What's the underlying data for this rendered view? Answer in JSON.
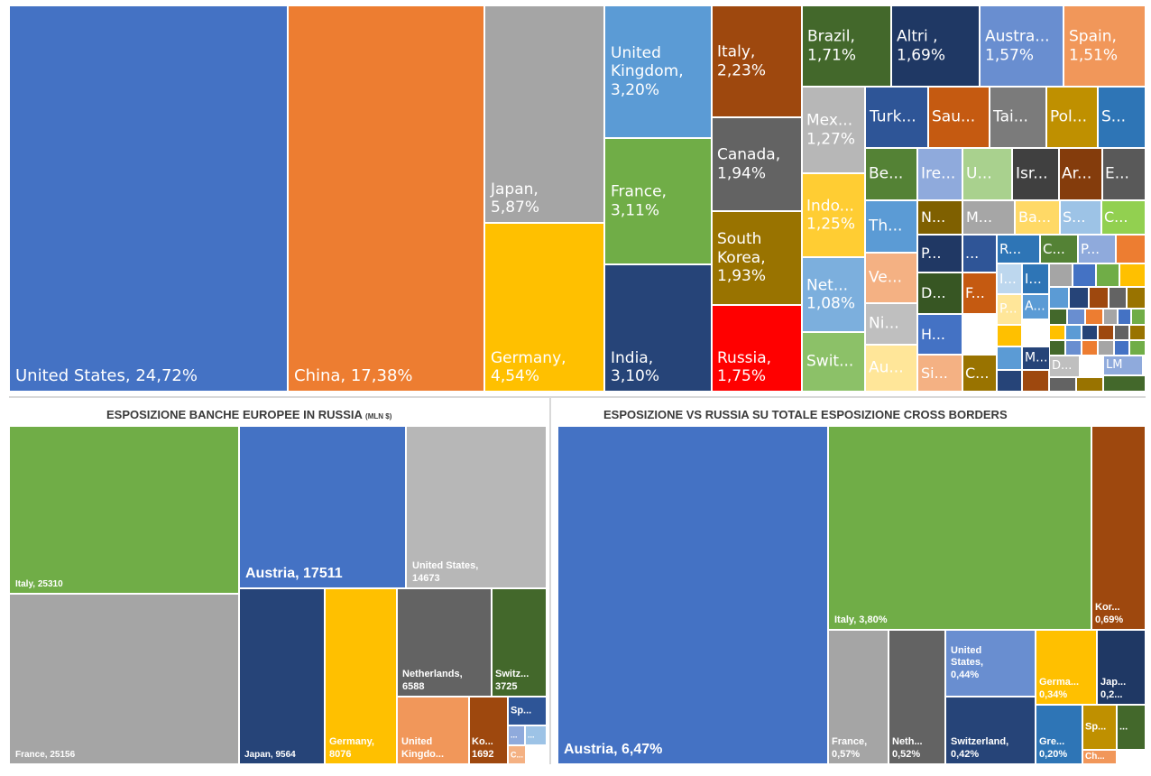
{
  "chart_data": [
    {
      "type": "treemap",
      "title": "",
      "items": [
        {
          "label": "United States, 24,72%",
          "name": "United States",
          "value": 24.72,
          "color": "#4472c4"
        },
        {
          "label": "China, 17,38%",
          "name": "China",
          "value": 17.38,
          "color": "#ed7d31"
        },
        {
          "label": "Japan,\n5,87%",
          "name": "Japan",
          "value": 5.87,
          "color": "#a5a5a5"
        },
        {
          "label": "Germany,\n4,54%",
          "name": "Germany",
          "value": 4.54,
          "color": "#ffc000"
        },
        {
          "label": "United\nKingdom,\n3,20%",
          "name": "United Kingdom",
          "value": 3.2,
          "color": "#5b9bd5"
        },
        {
          "label": "France,\n3,11%",
          "name": "France",
          "value": 3.11,
          "color": "#70ad47"
        },
        {
          "label": "India,\n3,10%",
          "name": "India",
          "value": 3.1,
          "color": "#264478"
        },
        {
          "label": "Italy,\n2,23%",
          "name": "Italy",
          "value": 2.23,
          "color": "#9e480e"
        },
        {
          "label": "Canada,\n1,94%",
          "name": "Canada",
          "value": 1.94,
          "color": "#636363"
        },
        {
          "label": "South\nKorea,\n1,93%",
          "name": "South Korea",
          "value": 1.93,
          "color": "#997300"
        },
        {
          "label": "Russia,\n1,75%",
          "name": "Russia",
          "value": 1.75,
          "color": "#ff0000"
        },
        {
          "label": "Brazil,\n1,71%",
          "name": "Brazil",
          "value": 1.71,
          "color": "#43682b"
        },
        {
          "label": "Altri ,\n1,69%",
          "name": "Altri",
          "value": 1.69,
          "color": "#1f3864"
        },
        {
          "label": "Austra...\n1,57%",
          "name": "Australia",
          "value": 1.57,
          "color": "#698ed0"
        },
        {
          "label": "Spain,\n1,51%",
          "name": "Spain",
          "value": 1.51,
          "color": "#f1975a"
        },
        {
          "label": "Mex...\n1,27%",
          "name": "Mexico",
          "value": 1.27,
          "color": "#b7b7b7"
        },
        {
          "label": "Indo...\n1,25%",
          "name": "Indonesia",
          "value": 1.25,
          "color": "#ffcd33"
        },
        {
          "label": "Net...\n1,08%",
          "name": "Netherlands",
          "value": 1.08,
          "color": "#7cafdd"
        },
        {
          "label": "Swit...",
          "name": "Switzerland",
          "color": "#8cc168"
        },
        {
          "label": "Turk...",
          "color": "#2e5597"
        },
        {
          "label": "Sau...",
          "color": "#c55a11"
        },
        {
          "label": "Tai...",
          "color": "#7b7b7b"
        },
        {
          "label": "Pol...",
          "color": "#bf9000"
        },
        {
          "label": "S...",
          "color": "#2e75b6"
        },
        {
          "label": "Be...",
          "color": "#548235"
        },
        {
          "label": "Ire...",
          "color": "#8faadc"
        },
        {
          "label": "U...",
          "color": "#a9d18e"
        },
        {
          "label": "Isr...",
          "color": "#404040"
        },
        {
          "label": "Ar...",
          "color": "#843c0c"
        },
        {
          "label": "E...",
          "color": "#595959"
        },
        {
          "label": "N...",
          "color": "#7f6000"
        },
        {
          "label": "M...",
          "color": "#a6a6a6"
        },
        {
          "label": "Ba...",
          "color": "#ffd966"
        },
        {
          "label": "S...",
          "color": "#9dc3e6"
        },
        {
          "label": "C...",
          "color": "#92d050"
        },
        {
          "label": "Th...",
          "color": "#5b9bd5"
        },
        {
          "label": "Ve...",
          "color": "#f4b183"
        },
        {
          "label": "Ni...",
          "color": "#bfbfbf"
        },
        {
          "label": "Au...",
          "color": "#ffe699"
        },
        {
          "label": "P...",
          "color": "#203864"
        },
        {
          "label": "...",
          "color": "#2f5597"
        },
        {
          "label": "R...",
          "color": "#2e75b6"
        },
        {
          "label": "C...",
          "color": "#548235"
        },
        {
          "label": "P...",
          "color": "#8faadc"
        },
        {
          "label": "D...",
          "color": "#375623"
        },
        {
          "label": "F...",
          "color": "#c55a11"
        },
        {
          "label": "H...",
          "color": "#4472c4"
        },
        {
          "label": "Si...",
          "color": "#f4b183"
        },
        {
          "label": "C...",
          "color": "#997300"
        },
        {
          "label": "I...",
          "color": "#bdd7ee"
        },
        {
          "label": "I...",
          "color": "#2e75b6"
        },
        {
          "label": "A...",
          "color": "#5b9bd5"
        },
        {
          "label": "P...",
          "color": "#ffe699"
        },
        {
          "label": "M...",
          "color": "#264478"
        },
        {
          "label": "D...",
          "color": "#bfbfbf"
        },
        {
          "label": "LM",
          "color": "#8faadc"
        }
      ]
    },
    {
      "type": "treemap",
      "title": "ESPOSIZIONE BANCHE EUROPEE IN RUSSIA",
      "unit": "(MLN $)",
      "items": [
        {
          "label": "Italy, 25310",
          "name": "Italy",
          "value": 25310,
          "color": "#70ad47"
        },
        {
          "label": "France, 25156",
          "name": "France",
          "value": 25156,
          "color": "#a5a5a5"
        },
        {
          "label": "Austria, 17511",
          "name": "Austria",
          "value": 17511,
          "color": "#4472c4"
        },
        {
          "label": "United States,\n14673",
          "name": "United States",
          "value": 14673,
          "color": "#b7b7b7"
        },
        {
          "label": "Japan, 9564",
          "name": "Japan",
          "value": 9564,
          "color": "#264478"
        },
        {
          "label": "Germany,\n8076",
          "name": "Germany",
          "value": 8076,
          "color": "#ffc000"
        },
        {
          "label": "Netherlands,\n6588",
          "name": "Netherlands",
          "value": 6588,
          "color": "#636363"
        },
        {
          "label": "Switz...\n3725",
          "name": "Switzerland",
          "value": 3725,
          "color": "#43682b"
        },
        {
          "label": "United\nKingdo...",
          "name": "United Kingdom",
          "color": "#f1975a"
        },
        {
          "label": "Ko...\n1692",
          "name": "Korea",
          "value": 1692,
          "color": "#9e480e"
        },
        {
          "label": "Sp...",
          "color": "#2e5597"
        },
        {
          "label": "...",
          "color": "#8faadc"
        },
        {
          "label": "...",
          "color": "#9dc3e6"
        },
        {
          "label": "C...",
          "color": "#f4b183"
        }
      ]
    },
    {
      "type": "treemap",
      "title": "ESPOSIZIONE VS RUSSIA SU TOTALE ESPOSIZIONE CROSS BORDERS",
      "items": [
        {
          "label": "Austria, 6,47%",
          "name": "Austria",
          "value": 6.47,
          "color": "#4472c4"
        },
        {
          "label": "Italy, 3,80%",
          "name": "Italy",
          "value": 3.8,
          "color": "#70ad47"
        },
        {
          "label": "Kor...\n0,69%",
          "name": "Korea",
          "value": 0.69,
          "color": "#9e480e"
        },
        {
          "label": "France,\n0,57%",
          "name": "France",
          "value": 0.57,
          "color": "#a5a5a5"
        },
        {
          "label": "Neth...\n0,52%",
          "name": "Netherlands",
          "value": 0.52,
          "color": "#636363"
        },
        {
          "label": "United\nStates,\n0,44%",
          "name": "United States",
          "value": 0.44,
          "color": "#698ed0"
        },
        {
          "label": "Switzerland,\n0,42%",
          "name": "Switzerland",
          "value": 0.42,
          "color": "#264478"
        },
        {
          "label": "Germa...\n0,34%",
          "name": "Germany",
          "value": 0.34,
          "color": "#ffc000"
        },
        {
          "label": "Jap...\n0,2...",
          "name": "Japan",
          "color": "#1f3864"
        },
        {
          "label": "Gre...\n0,20%",
          "name": "Greece",
          "value": 0.2,
          "color": "#2e75b6"
        },
        {
          "label": "Sp...",
          "color": "#bf9000"
        },
        {
          "label": "...",
          "color": "#43682b"
        },
        {
          "label": "Ch...",
          "color": "#f1975a"
        }
      ]
    }
  ]
}
